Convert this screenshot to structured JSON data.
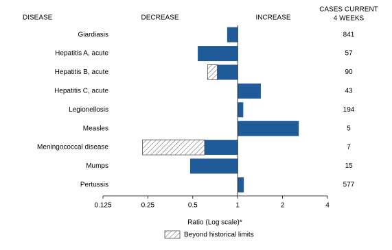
{
  "chart_data": {
    "type": "bar",
    "orientation": "horizontal",
    "headers": {
      "disease": "DISEASE",
      "decrease": "DECREASE",
      "increase": "INCREASE",
      "cases": [
        "CASES CURRENT",
        "4 WEEKS"
      ]
    },
    "categories": [
      "Giardiasis",
      "Hepatitis A, acute",
      "Hepatitis B, acute",
      "Hepatitis C, acute",
      "Legionellosis",
      "Measles",
      "Meningococcal disease",
      "Mumps",
      "Pertussis"
    ],
    "values": [
      0.85,
      0.54,
      0.63,
      1.43,
      1.09,
      2.57,
      0.23,
      0.48,
      1.1
    ],
    "limits": [
      null,
      null,
      0.73,
      null,
      null,
      null,
      0.6,
      null,
      null
    ],
    "cases": [
      841,
      57,
      90,
      43,
      194,
      5,
      7,
      15,
      577
    ],
    "color": "#1f5b98",
    "log_scale": true,
    "xlim": [
      0.125,
      4
    ],
    "xticks": [
      0.125,
      0.25,
      0.5,
      1,
      2,
      4
    ],
    "xlabel": "Ratio (Log scale)*",
    "legend": "Beyond historical limits"
  }
}
